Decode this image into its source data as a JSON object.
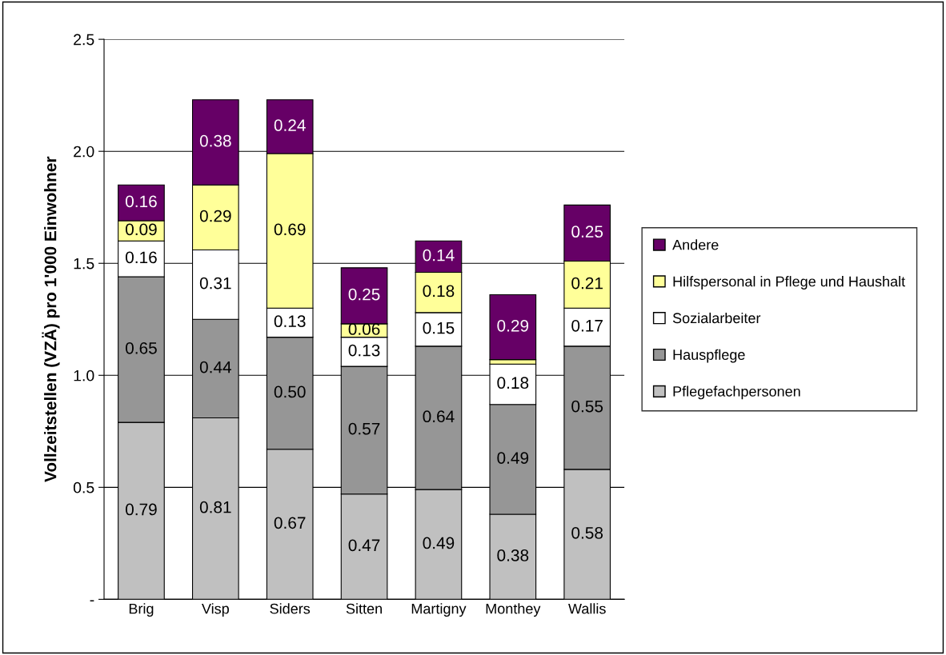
{
  "chart_data": {
    "type": "bar",
    "stacked": true,
    "ylabel": "Vollzeitstellen (VZÄ) pro 1'000 Einwohner",
    "categories": [
      "Brig",
      "Visp",
      "Siders",
      "Sitten",
      "Martigny",
      "Monthey",
      "Wallis"
    ],
    "series": [
      {
        "name": "Pflegefachpersonen",
        "color": "#c0c0c0",
        "values": [
          0.79,
          0.81,
          0.67,
          0.47,
          0.49,
          0.38,
          0.58
        ],
        "value_labels": [
          "0.79",
          "0.81",
          "0.67",
          "0.47",
          "0.49",
          "0.38",
          "0.58"
        ]
      },
      {
        "name": "Hauspflege",
        "color": "#969696",
        "values": [
          0.65,
          0.44,
          0.5,
          0.57,
          0.64,
          0.49,
          0.55
        ],
        "value_labels": [
          "0.65",
          "0.44",
          "0.50",
          "0.57",
          "0.64",
          "0.49",
          "0.55"
        ]
      },
      {
        "name": "Sozialarbeiter",
        "color": "#ffffff",
        "values": [
          0.16,
          0.31,
          0.13,
          0.13,
          0.15,
          0.18,
          0.17
        ],
        "value_labels": [
          "0.16",
          "0.31",
          "0.13",
          "0.13",
          "0.15",
          "0.18",
          "0.17"
        ]
      },
      {
        "name": "Hilfspersonal in Pflege und Haushalt",
        "color": "#ffff99",
        "values": [
          0.09,
          0.29,
          0.69,
          0.06,
          0.18,
          0.02,
          0.21
        ],
        "value_labels": [
          "0.09",
          "0.29",
          "0.69",
          "0.06",
          "0.18",
          null,
          "0.21"
        ]
      },
      {
        "name": "Andere",
        "color": "#660066",
        "values": [
          0.16,
          0.38,
          0.24,
          0.25,
          0.14,
          0.29,
          0.25
        ],
        "value_labels": [
          "0.16",
          "0.38",
          "0.24",
          "0.25",
          "0.14",
          "0.29",
          "0.25"
        ]
      }
    ],
    "ylim": [
      0,
      2.5
    ],
    "yticks": [
      {
        "value": 0,
        "label": "-"
      },
      {
        "value": 0.5,
        "label": "0.5"
      },
      {
        "value": 1.0,
        "label": "1.0"
      },
      {
        "value": 1.5,
        "label": "1.5"
      },
      {
        "value": 2.0,
        "label": "2.0"
      },
      {
        "value": 2.5,
        "label": "2.5"
      }
    ],
    "grid": "y",
    "legend": "right"
  }
}
